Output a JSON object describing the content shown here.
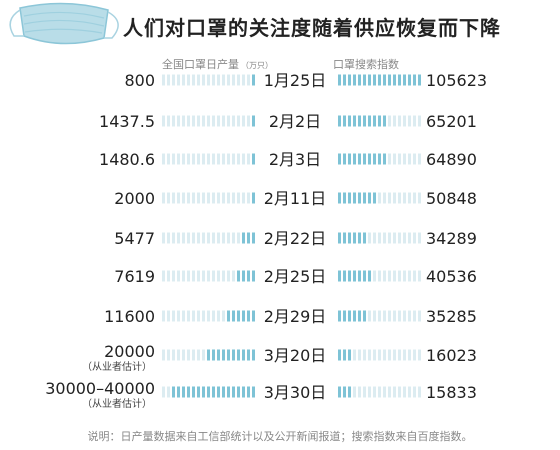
{
  "title": "人们对口罩的关注度随着供应恢复而下降",
  "headers": {
    "left": "全国口罩日产量",
    "left_unit": "（万只）",
    "right": "口罩搜索指数"
  },
  "footnote": "说明：日产量数据来自工信部统计以及公开新闻报道；搜索指数来自百度指数。",
  "colors": {
    "bar_dark": "#7ec3d6",
    "bar_light": "#dcecf1",
    "text": "#222222",
    "muted": "#888888"
  },
  "chart_data": {
    "type": "bar",
    "title": "人们对口罩的关注度随着供应恢复而下降",
    "categories": [
      "1月25日",
      "2月2日",
      "2月3日",
      "2月11日",
      "2月22日",
      "2月25日",
      "2月29日",
      "3月20日",
      "3月30日"
    ],
    "series": [
      {
        "name": "全国口罩日产量",
        "values": [
          800,
          1437.5,
          1480.6,
          2000,
          5477,
          7619,
          11600,
          20000,
          35000
        ],
        "labels": [
          "800",
          "1437.5",
          "1480.6",
          "2000",
          "5477",
          "7619",
          "11600",
          "20000",
          "30000–40000"
        ],
        "notes": [
          "",
          "",
          "",
          "",
          "",
          "",
          "",
          "（从业者估计）",
          "（从业者估计）"
        ]
      },
      {
        "name": "口罩搜索指数",
        "values": [
          105623,
          65201,
          64890,
          50848,
          34289,
          40536,
          35285,
          16023,
          15833
        ],
        "labels": [
          "105623",
          "65201",
          "64890",
          "50848",
          "34289",
          "40536",
          "35285",
          "16023",
          "15833"
        ]
      }
    ],
    "left_max": 35000,
    "right_max": 105623
  }
}
